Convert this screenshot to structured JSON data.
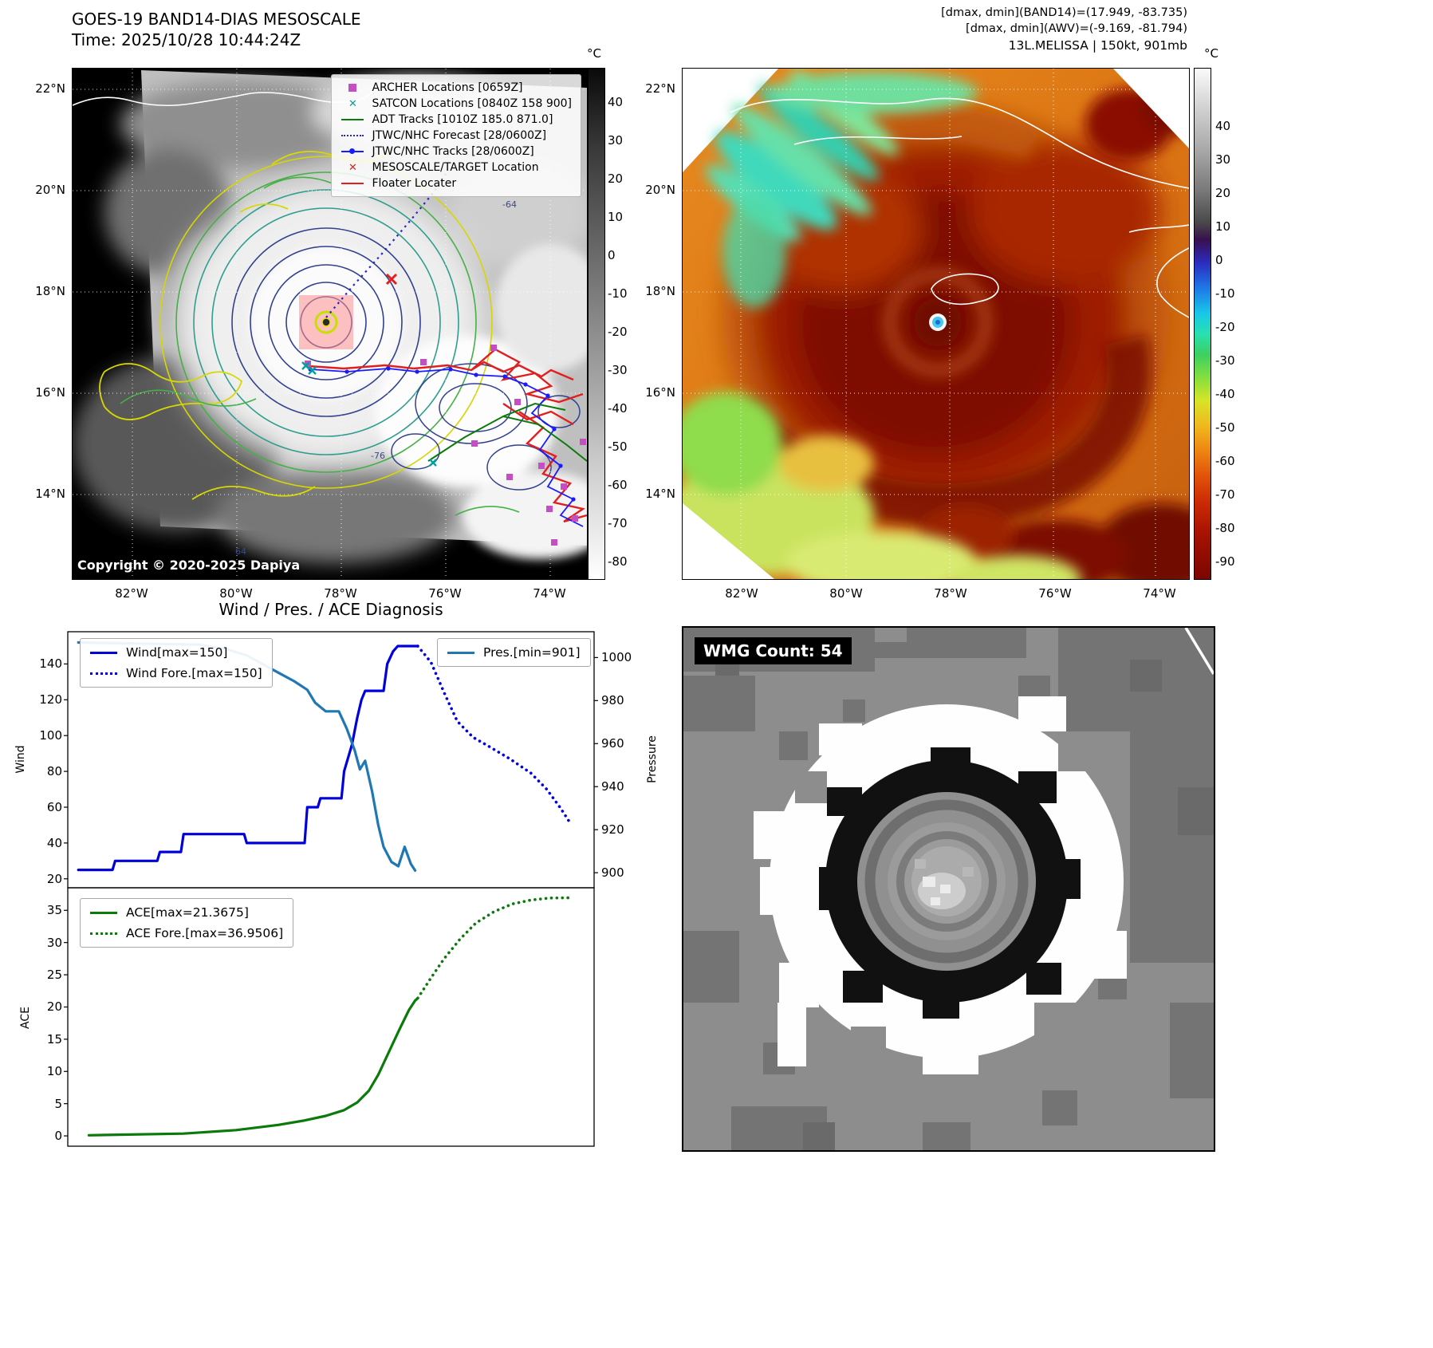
{
  "band14_panel": {
    "title": "GOES-19 BAND14-DIAS MESOSCALE",
    "time_line": "Time: 2025/10/28 10:44:24Z",
    "copyright": "Copyright © 2020-2025 Dapiya",
    "colorbar_unit": "°C",
    "colorbar_ticks": [
      "40",
      "30",
      "20",
      "10",
      "0",
      "-10",
      "-20",
      "-30",
      "-40",
      "-50",
      "-60",
      "-70",
      "-80"
    ],
    "lat_ticks": [
      "22°N",
      "20°N",
      "18°N",
      "16°N",
      "14°N"
    ],
    "lon_ticks": [
      "82°W",
      "80°W",
      "78°W",
      "76°W",
      "74°W"
    ],
    "contour_labels": [
      "-64",
      "-76",
      "64"
    ],
    "legend": [
      {
        "label": "ARCHER Locations [0659Z]",
        "marker": "square",
        "color": "#c34fc3"
      },
      {
        "label": "SATCON Locations [0840Z 158 900]",
        "marker": "x",
        "color": "#00a0a0"
      },
      {
        "label": "ADT Tracks [1010Z 185.0 871.0]",
        "marker": "line",
        "color": "#0a7a0a"
      },
      {
        "label": "JTWC/NHC Forecast [28/0600Z]",
        "marker": "dotted",
        "color": "#2424c8"
      },
      {
        "label": "JTWC/NHC Tracks [28/0600Z]",
        "marker": "line-dot",
        "color": "#1a1aff"
      },
      {
        "label": "MESOSCALE/TARGET Location",
        "marker": "x",
        "color": "#e02020"
      },
      {
        "label": "Floater Locater",
        "marker": "line",
        "color": "#e02020"
      }
    ]
  },
  "awv_panel": {
    "header_lines": [
      "[dmax, dmin](BAND14)=(17.949, -83.735)",
      "[dmax, dmin](AWV)=(-9.169, -81.794)",
      "13L.MELISSA | 150kt, 901mb"
    ],
    "colorbar_unit": "°C",
    "colorbar_ticks": [
      "40",
      "30",
      "20",
      "10",
      "0",
      "-10",
      "-20",
      "-30",
      "-40",
      "-50",
      "-60",
      "-70",
      "-80",
      "-90"
    ],
    "lat_ticks": [
      "22°N",
      "20°N",
      "18°N",
      "16°N",
      "14°N"
    ],
    "lon_ticks": [
      "82°W",
      "80°W",
      "78°W",
      "76°W",
      "74°W"
    ]
  },
  "wmg_panel": {
    "label": "WMG Count: 54"
  },
  "chart_data": [
    {
      "type": "line",
      "title": "Wind / Pres. / ACE Diagnosis",
      "ylabel_left": "Wind",
      "ylabel_right": "Pressure",
      "ylim_left": [
        15,
        158
      ],
      "ylim_right": [
        893,
        1012
      ],
      "yticks_left": [
        20,
        40,
        60,
        80,
        100,
        120,
        140
      ],
      "yticks_right": [
        900,
        920,
        940,
        960,
        980,
        1000
      ],
      "xlim": [
        0,
        1
      ],
      "grid": false,
      "series": [
        {
          "name": "Wind[max=150]",
          "color": "#0000dd",
          "style": "solid",
          "axis": "left",
          "x": [
            0.02,
            0.085,
            0.09,
            0.17,
            0.175,
            0.215,
            0.22,
            0.335,
            0.34,
            0.45,
            0.455,
            0.475,
            0.48,
            0.52,
            0.525,
            0.54,
            0.55,
            0.558,
            0.565,
            0.6,
            0.607,
            0.618,
            0.627,
            0.665
          ],
          "y": [
            25,
            25,
            30,
            30,
            35,
            35,
            45,
            45,
            40,
            40,
            60,
            60,
            65,
            65,
            80,
            95,
            110,
            120,
            125,
            125,
            140,
            147,
            150,
            150
          ]
        },
        {
          "name": "Wind Fore.[max=150]",
          "color": "#0000dd",
          "style": "dotted",
          "axis": "left",
          "x": [
            0.665,
            0.69,
            0.715,
            0.74,
            0.77,
            0.8,
            0.84,
            0.88,
            0.91,
            0.935,
            0.955
          ],
          "y": [
            150,
            141,
            124,
            108,
            99,
            94,
            87,
            79,
            70,
            60,
            51
          ]
        },
        {
          "name": "Pres.[min=901]",
          "color": "#1f77b4",
          "style": "solid",
          "axis": "right",
          "x": [
            0.02,
            0.25,
            0.3,
            0.34,
            0.37,
            0.4,
            0.43,
            0.455,
            0.47,
            0.49,
            0.515,
            0.53,
            0.545,
            0.555,
            0.565,
            0.578,
            0.59,
            0.6,
            0.615,
            0.628,
            0.64,
            0.652,
            0.66
          ],
          "y": [
            1007,
            1006,
            1004,
            1001,
            997,
            993,
            989,
            985,
            979,
            975,
            975,
            967,
            957,
            948,
            952,
            938,
            922,
            912,
            905,
            903,
            912,
            904,
            901
          ]
        }
      ]
    },
    {
      "type": "line",
      "ylabel_left": "ACE",
      "ylim_left": [
        -1.6,
        38.5
      ],
      "yticks_left": [
        0,
        5,
        10,
        15,
        20,
        25,
        30,
        35
      ],
      "xlim": [
        0,
        1
      ],
      "grid": false,
      "series": [
        {
          "name": "ACE[max=21.3675]",
          "color": "#0a7a0a",
          "style": "solid",
          "axis": "left",
          "x": [
            0.04,
            0.22,
            0.32,
            0.4,
            0.45,
            0.49,
            0.525,
            0.55,
            0.572,
            0.59,
            0.61,
            0.63,
            0.648,
            0.66,
            0.665
          ],
          "y": [
            0.1,
            0.35,
            0.9,
            1.7,
            2.4,
            3.1,
            4.0,
            5.2,
            7.0,
            9.5,
            13.0,
            16.5,
            19.5,
            21.0,
            21.37
          ]
        },
        {
          "name": "ACE Fore.[max=36.9506]",
          "color": "#0a7a0a",
          "style": "dotted",
          "axis": "left",
          "x": [
            0.665,
            0.69,
            0.715,
            0.745,
            0.775,
            0.81,
            0.845,
            0.88,
            0.915,
            0.955
          ],
          "y": [
            21.37,
            24.5,
            27.5,
            30.5,
            33.0,
            34.8,
            36.0,
            36.6,
            36.9,
            36.95
          ]
        }
      ]
    }
  ]
}
